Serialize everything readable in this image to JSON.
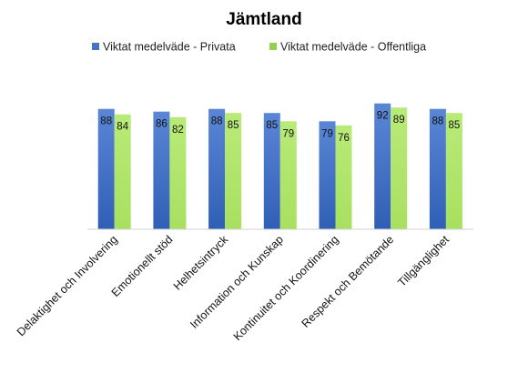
{
  "chart_data": {
    "type": "bar",
    "title": "Jämtland",
    "categories": [
      "Delaktighet och Involvering",
      "Emotionellt stöd",
      "Helhetsintryck",
      "Information och Kunskap",
      "Kontinuitet och Koordinering",
      "Respekt och Bemötande",
      "Tillgänglighet"
    ],
    "series": [
      {
        "name": "Viktat medelväde - Privata",
        "values": [
          88,
          86,
          88,
          85,
          79,
          92,
          88
        ],
        "color": "#4472C4"
      },
      {
        "name": "Viktat medelväde - Offentliga",
        "values": [
          84,
          82,
          85,
          79,
          76,
          89,
          85
        ],
        "color": "#92D050"
      }
    ],
    "ylim": [
      0,
      100
    ],
    "grid": false,
    "legend_position": "top",
    "data_labels": true,
    "xlabel": "",
    "ylabel": ""
  }
}
